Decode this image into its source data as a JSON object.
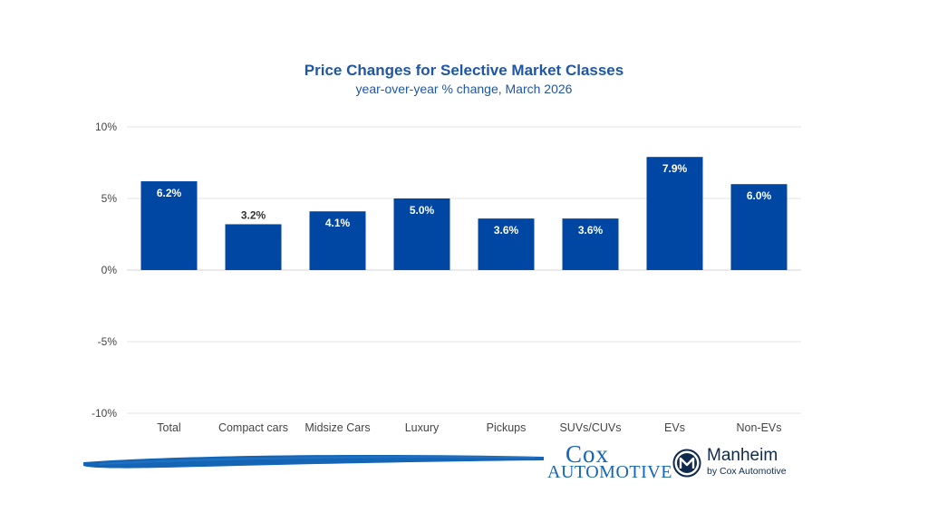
{
  "chart_data": {
    "type": "bar",
    "title": "Price Changes for Selective Market Classes",
    "subtitle": "year-over-year % change, March 2026",
    "categories": [
      "Total",
      "Compact cars",
      "Midsize Cars",
      "Luxury",
      "Pickups",
      "SUVs/CUVs",
      "EVs",
      "Non-EVs"
    ],
    "values": [
      6.2,
      3.2,
      4.1,
      5.0,
      3.6,
      3.6,
      7.9,
      6.0
    ],
    "data_labels": [
      "6.2%",
      "3.2%",
      "4.1%",
      "5.0%",
      "3.6%",
      "3.6%",
      "7.9%",
      "6.0%"
    ],
    "yticks": [
      10,
      5,
      0,
      -5,
      -10
    ],
    "ytick_labels": [
      "10%",
      "5%",
      "0%",
      "-5%",
      "-10%"
    ],
    "ylim": [
      -10,
      10
    ],
    "xlabel": "",
    "ylabel": "",
    "grid": true,
    "bar_color": "#0047a3",
    "title_color": "#1f56a6"
  },
  "logos": {
    "cox_line1": "Cox",
    "cox_line2": "AUTOMOTIVE",
    "manheim_name": "Manheim",
    "manheim_tagline": "by Cox Automotive"
  }
}
